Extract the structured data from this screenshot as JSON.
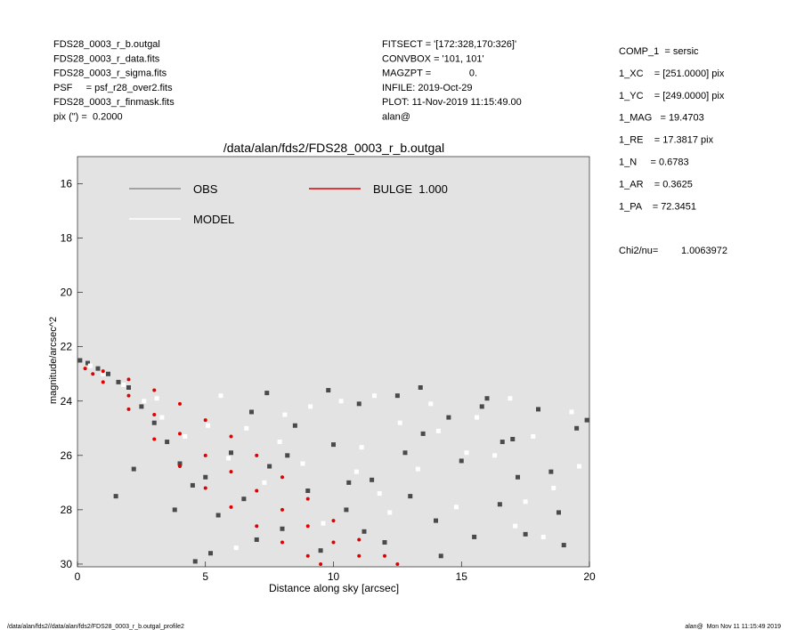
{
  "header": {
    "left": [
      "FDS28_0003_r_b.outgal",
      "FDS28_0003_r_data.fits",
      "FDS28_0003_r_sigma.fits",
      "PSF     = psf_r28_over2.fits",
      "FDS28_0003_r_finmask.fits",
      "pix (\") =  0.2000"
    ],
    "middle": [
      "FITSECT = '[172:328,170:326]'",
      "CONVBOX = '101, 101'",
      "MAGZPT =              0.",
      "INFILE: 2019-Oct-29",
      "PLOT: 11-Nov-2019 11:15:49.00",
      "alan@"
    ],
    "right": [
      "COMP_1  = sersic",
      "1_XC    = [251.0000] pix",
      "1_YC    = [249.0000] pix",
      "1_MAG   = 19.4703",
      "1_RE    = 17.3817 pix",
      "1_N     = 0.6783",
      "1_AR    = 0.3625",
      "1_PA    = 72.3451"
    ],
    "chi2_label": "Chi2/nu=",
    "chi2_value": "1.0063972"
  },
  "chart_data": {
    "type": "scatter",
    "title": "/data/alan/fds2/FDS28_0003_r_b.outgal",
    "x_label": "Distance along sky [arcsec]",
    "y_label": "magnitude/arcsec^2",
    "xlim": [
      0,
      20
    ],
    "xticks": [
      0,
      5,
      10,
      15,
      20
    ],
    "ylim": [
      15,
      30.1
    ],
    "y_inverted": true,
    "yticks": [
      16,
      18,
      20,
      22,
      24,
      26,
      28,
      30
    ],
    "background": "#e3e3e3",
    "series": [
      {
        "name": "OBS",
        "color": "#4a4a4a",
        "legend_color": "#8c8c8c",
        "x": [
          0.1,
          0.4,
          0.8,
          1.2,
          1.6,
          2.0,
          2.5,
          3.0,
          3.5,
          4.0,
          4.5,
          5.0,
          5.5,
          6.0,
          6.5,
          7.0,
          7.5,
          8.0,
          8.5,
          9.0,
          9.5,
          10,
          10.5,
          11,
          11.5,
          12,
          12.5,
          13,
          13.5,
          14,
          14.5,
          15,
          15.5,
          16,
          16.5,
          17,
          17.5,
          18,
          18.5,
          19,
          19.5,
          19.9,
          2.2,
          3.8,
          5.2,
          6.8,
          8.2,
          9.8,
          11.2,
          12.8,
          14.2,
          15.8,
          17.2,
          18.8,
          1.5,
          4.6,
          7.4,
          10.6,
          13.4,
          16.6
        ],
        "values": [
          22.5,
          22.6,
          22.8,
          23.0,
          23.3,
          23.5,
          24.2,
          24.8,
          25.5,
          26.3,
          27.1,
          26.8,
          28.2,
          25.9,
          27.6,
          29.1,
          26.4,
          28.7,
          24.9,
          27.3,
          29.5,
          25.6,
          28.0,
          24.1,
          26.9,
          29.2,
          23.8,
          27.5,
          25.2,
          28.4,
          24.6,
          26.2,
          29.0,
          23.9,
          27.8,
          25.4,
          28.9,
          24.3,
          26.6,
          29.3,
          25.0,
          24.7,
          26.5,
          28.0,
          29.6,
          24.4,
          26.0,
          23.6,
          28.8,
          25.9,
          29.7,
          24.2,
          26.8,
          28.1,
          27.5,
          29.9,
          23.7,
          27.0,
          23.5,
          25.5
        ]
      },
      {
        "name": "MODEL",
        "color": "#ffffff",
        "legend_color": "#ffffff",
        "x": [
          0.5,
          1.0,
          1.8,
          2.6,
          3.3,
          4.2,
          5.1,
          5.9,
          6.6,
          7.3,
          8.1,
          8.8,
          9.6,
          10.3,
          11.1,
          11.8,
          12.6,
          13.3,
          14.1,
          14.8,
          15.6,
          16.3,
          17.1,
          17.8,
          18.6,
          19.3,
          3.1,
          5.6,
          7.9,
          9.1,
          10.9,
          12.2,
          13.8,
          15.2,
          16.9,
          18.2,
          19.6,
          6.2,
          11.6,
          17.5
        ],
        "values": [
          22.7,
          23.0,
          23.4,
          24.0,
          24.6,
          25.3,
          24.9,
          26.1,
          25.0,
          27.0,
          24.5,
          26.3,
          28.5,
          24.0,
          25.7,
          27.4,
          24.8,
          26.5,
          25.1,
          27.9,
          24.6,
          26.0,
          28.6,
          25.3,
          27.2,
          24.4,
          23.9,
          23.8,
          25.5,
          24.2,
          26.6,
          28.1,
          24.1,
          25.9,
          23.9,
          29.0,
          26.4,
          29.4,
          23.8,
          27.7
        ]
      },
      {
        "name": "BULGE  1.000",
        "color": "#e00000",
        "legend_color": "#e00000",
        "x": [
          0.3,
          1,
          2,
          3,
          4,
          5,
          6,
          7,
          8,
          9,
          10,
          11,
          12,
          12.5,
          0.6,
          1,
          2,
          3,
          4,
          5,
          6,
          7,
          8,
          9,
          9.5,
          2,
          3,
          4,
          5,
          6,
          7,
          8,
          9,
          10,
          11
        ],
        "values": [
          22.8,
          22.9,
          23.2,
          23.6,
          24.1,
          24.7,
          25.3,
          26.0,
          26.8,
          27.6,
          28.4,
          29.1,
          29.7,
          30.0,
          23.0,
          23.3,
          24.3,
          25.4,
          26.4,
          27.2,
          27.9,
          28.6,
          29.2,
          29.7,
          30.0,
          23.8,
          24.5,
          25.2,
          26.0,
          26.6,
          27.3,
          28.0,
          28.6,
          29.2,
          29.7
        ]
      }
    ]
  },
  "footer": {
    "left": "/data/alan/fds2//data/alan/fds2/FDS28_0003_r_b.outgal_profile2",
    "right": "alan@  Mon Nov 11 11:15:49 2019"
  }
}
